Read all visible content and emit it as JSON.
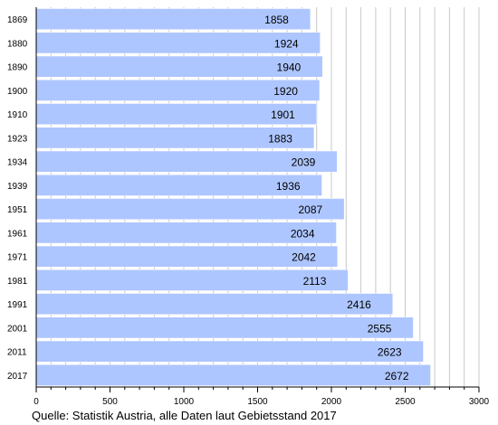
{
  "source": "Quelle: Statistik Austria, alle Daten laut Gebietsstand 2017",
  "colors": {
    "bar": "#aec6ff",
    "bar_edge": "#ffffff",
    "gridline": "#c8c8c8",
    "axis": "#000000"
  },
  "chart_data": {
    "type": "bar",
    "orientation": "horizontal",
    "categories": [
      "1869",
      "1880",
      "1890",
      "1900",
      "1910",
      "1923",
      "1934",
      "1939",
      "1951",
      "1961",
      "1971",
      "1981",
      "1991",
      "2001",
      "2011",
      "2017"
    ],
    "values": [
      1858,
      1924,
      1940,
      1920,
      1901,
      1883,
      2039,
      1936,
      2087,
      2034,
      2042,
      2113,
      2416,
      2555,
      2623,
      2672
    ],
    "value_labels": [
      "1858",
      "1924",
      "1940",
      "1920",
      "1901",
      "1883",
      "2039",
      "1936",
      "2087",
      "2034",
      "2042",
      "2113",
      "2416",
      "2555",
      "2623",
      "2672"
    ],
    "xticks": [
      0,
      500,
      1000,
      1500,
      2000,
      2500,
      3000
    ],
    "xtick_labels": [
      "0",
      "500",
      "1000",
      "1500",
      "2000",
      "2500",
      "3000"
    ],
    "xlim": [
      0,
      3000
    ],
    "minor_step": 100,
    "grid": true,
    "title": "",
    "xlabel": "",
    "ylabel": ""
  }
}
